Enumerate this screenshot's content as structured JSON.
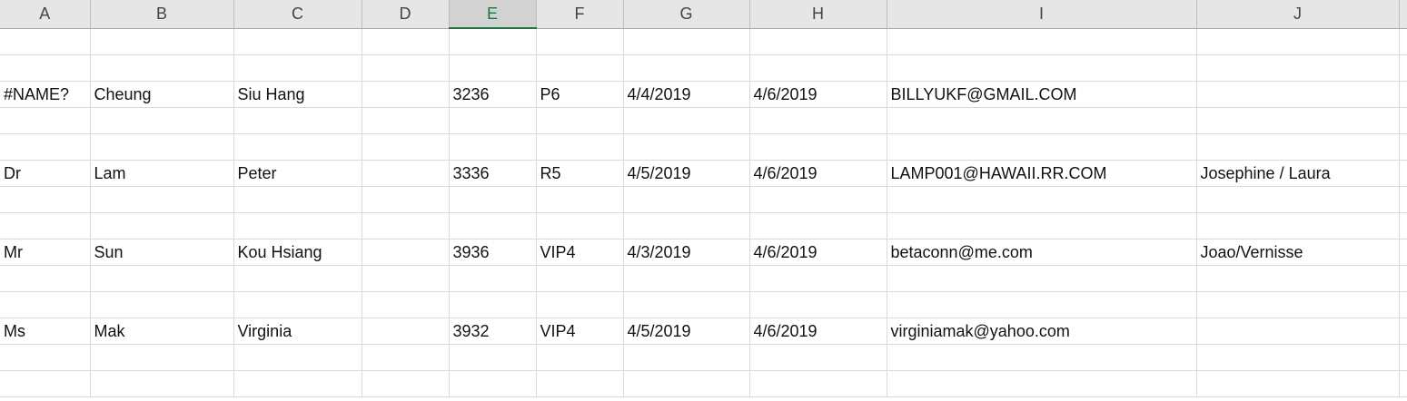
{
  "columns": [
    {
      "label": "A",
      "selected": false
    },
    {
      "label": "B",
      "selected": false
    },
    {
      "label": "C",
      "selected": false
    },
    {
      "label": "D",
      "selected": false
    },
    {
      "label": "E",
      "selected": true
    },
    {
      "label": "F",
      "selected": false
    },
    {
      "label": "G",
      "selected": false
    },
    {
      "label": "H",
      "selected": false
    },
    {
      "label": "I",
      "selected": false
    },
    {
      "label": "J",
      "selected": false
    },
    {
      "label": "",
      "selected": false
    }
  ],
  "rows": [
    [
      "",
      "",
      "",
      "",
      "",
      "",
      "",
      "",
      "",
      "",
      ""
    ],
    [
      "",
      "",
      "",
      "",
      "",
      "",
      "",
      "",
      "",
      "",
      ""
    ],
    [
      "#NAME?",
      "Cheung",
      "Siu Hang",
      "",
      "3236",
      "P6",
      "4/4/2019",
      "4/6/2019",
      "BILLYUKF@GMAIL.COM",
      "",
      ""
    ],
    [
      "",
      "",
      "",
      "",
      "",
      "",
      "",
      "",
      "",
      "",
      ""
    ],
    [
      "",
      "",
      "",
      "",
      "",
      "",
      "",
      "",
      "",
      "",
      ""
    ],
    [
      "Dr",
      "Lam",
      "Peter",
      "",
      "3336",
      "R5",
      "4/5/2019",
      "4/6/2019",
      "LAMP001@HAWAII.RR.COM",
      "Josephine / Laura",
      ""
    ],
    [
      "",
      "",
      "",
      "",
      "",
      "",
      "",
      "",
      "",
      "",
      ""
    ],
    [
      "",
      "",
      "",
      "",
      "",
      "",
      "",
      "",
      "",
      "",
      ""
    ],
    [
      "Mr",
      "Sun",
      "Kou Hsiang",
      "",
      "3936",
      "VIP4",
      "4/3/2019",
      "4/6/2019",
      "betaconn@me.com",
      "Joao/Vernisse",
      ""
    ],
    [
      "",
      "",
      "",
      "",
      "",
      "",
      "",
      "",
      "",
      "",
      ""
    ],
    [
      "",
      "",
      "",
      "",
      "",
      "",
      "",
      "",
      "",
      "",
      ""
    ],
    [
      "Ms",
      "Mak",
      "Virginia",
      "",
      "3932",
      "VIP4",
      "4/5/2019",
      "4/6/2019",
      "virginiamak@yahoo.com",
      "",
      ""
    ],
    [
      "",
      "",
      "",
      "",
      "",
      "",
      "",
      "",
      "",
      "",
      ""
    ],
    [
      "",
      "",
      "",
      "",
      "",
      "",
      "",
      "",
      "",
      "",
      ""
    ]
  ]
}
